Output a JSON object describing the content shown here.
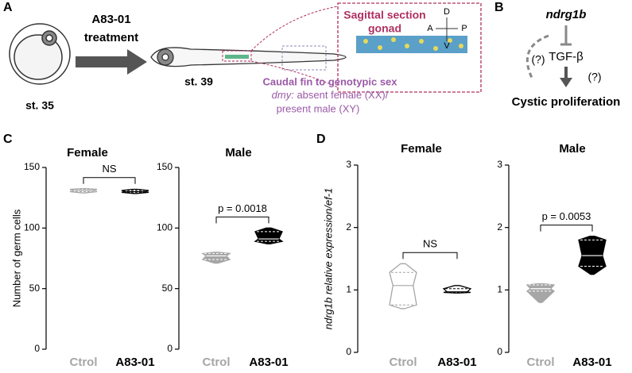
{
  "diagram": {
    "panel_a": "A",
    "panel_b": "B",
    "panel_c": "C",
    "panel_d": "D",
    "stage1": "st. 35",
    "treatment1": "A83-01",
    "treatment2": "treatment",
    "stage2": "st. 39",
    "section1": "Sagittal section",
    "section2": "gonad",
    "axis_d": "D",
    "axis_a": "A",
    "axis_p": "P",
    "axis_v": "V",
    "fin1": "Caudal fin to genotypic sex",
    "fin2a": "dmy:",
    "fin2b": " absent female (XX)/",
    "fin3": "present male (XY)",
    "gene": "ndrg1b",
    "q1": "(?)",
    "tgf": "TGF-β",
    "q2": "(?)",
    "outcome": "Cystic proliferation"
  },
  "chart_data": [
    {
      "type": "violin",
      "title": "Female",
      "ylabel": "Number of germ cells",
      "categories": [
        "Ctrol",
        "A83-01"
      ],
      "colors": [
        "#a6a6a6",
        "#000000"
      ],
      "filled": false,
      "values": [
        {
          "min": 129,
          "q1": 130,
          "median": 131,
          "q3": 132,
          "max": 132.5
        },
        {
          "min": 128.5,
          "q1": 129.5,
          "median": 130,
          "q3": 131,
          "max": 132
        }
      ],
      "ylim": [
        0,
        150
      ],
      "yticks": [
        0,
        50,
        100,
        150
      ],
      "annotation": "NS"
    },
    {
      "type": "violin",
      "title": "Male",
      "categories": [
        "Ctrol",
        "A83-01"
      ],
      "colors": [
        "#a6a6a6",
        "#000000"
      ],
      "filled": true,
      "values": [
        {
          "min": 71,
          "q1": 74,
          "median": 77,
          "q3": 79,
          "max": 80
        },
        {
          "min": 87,
          "q1": 89,
          "median": 91,
          "q3": 97,
          "max": 100
        }
      ],
      "ylim": [
        0,
        150
      ],
      "yticks": [
        0,
        50,
        100,
        150
      ],
      "annotation": "p = 0.0018"
    },
    {
      "type": "violin",
      "title": "Female",
      "ylabel": "ndrg1b relative expression/ef-1",
      "categories": [
        "Ctrol",
        "A83-01"
      ],
      "colors": [
        "#a6a6a6",
        "#000000"
      ],
      "filled": false,
      "values": [
        {
          "min": 0.7,
          "q1": 0.76,
          "median": 1.07,
          "q3": 1.28,
          "max": 1.42
        },
        {
          "min": 0.95,
          "q1": 0.96,
          "median": 0.97,
          "q3": 1.02,
          "max": 1.07
        }
      ],
      "ylim": [
        0,
        3
      ],
      "yticks": [
        0,
        1,
        2,
        3
      ],
      "annotation": "NS"
    },
    {
      "type": "violin",
      "title": "Male",
      "categories": [
        "Ctrol",
        "A83-01"
      ],
      "colors": [
        "#a6a6a6",
        "#000000"
      ],
      "filled": true,
      "values": [
        {
          "min": 0.8,
          "q1": 0.98,
          "median": 1.02,
          "q3": 1.08,
          "max": 1.1
        },
        {
          "min": 1.25,
          "q1": 1.38,
          "median": 1.55,
          "q3": 1.8,
          "max": 1.86
        }
      ],
      "ylim": [
        0,
        3
      ],
      "yticks": [
        0,
        1,
        2,
        3
      ],
      "annotation": "p = 0.0053"
    }
  ]
}
